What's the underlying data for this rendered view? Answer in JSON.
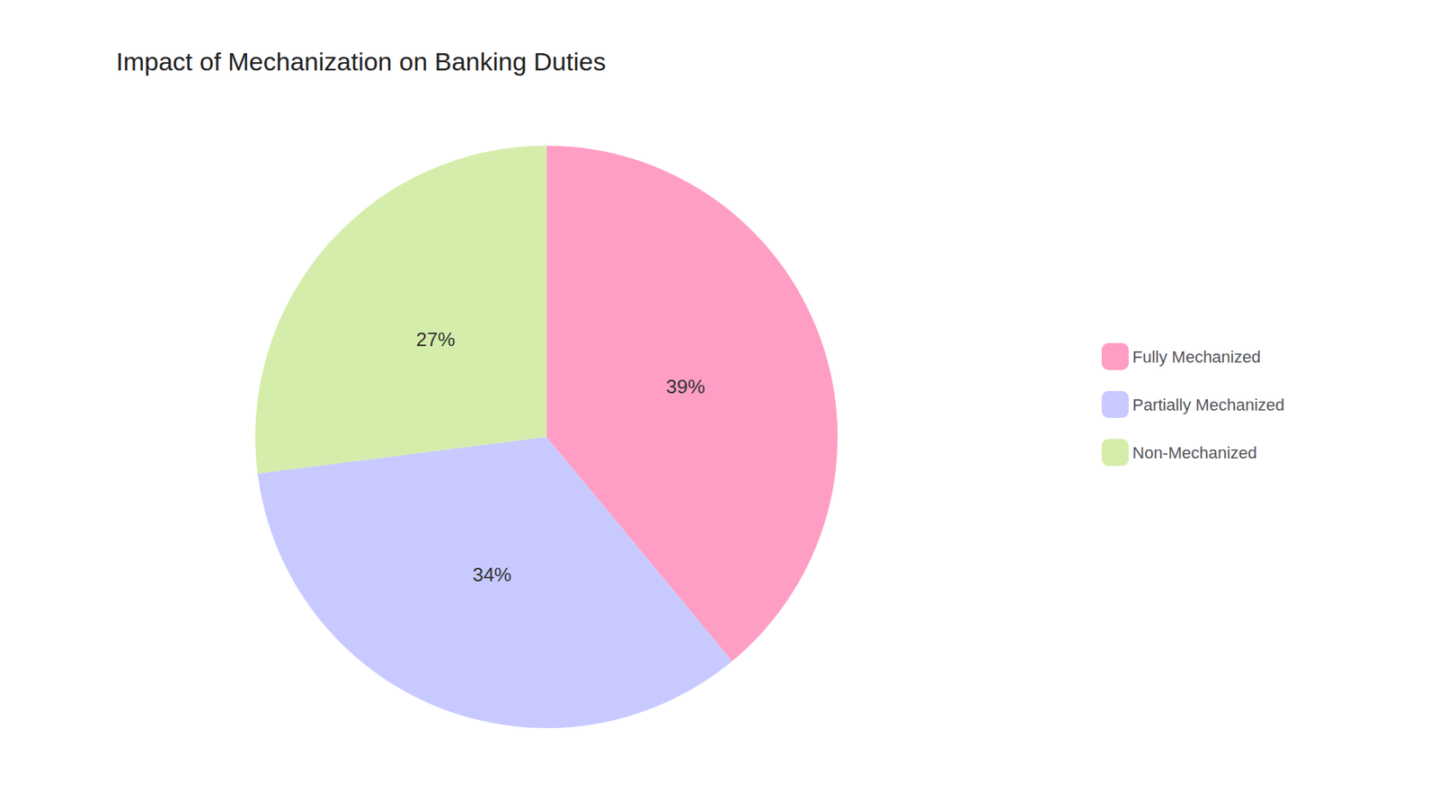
{
  "chart_data": {
    "type": "pie",
    "title": "Impact of Mechanization on Banking Duties",
    "categories": [
      "Fully Mechanized",
      "Partially Mechanized",
      "Non-Mechanized"
    ],
    "values": [
      39,
      34,
      27
    ],
    "value_labels": [
      "39%",
      "34%",
      "27%"
    ],
    "colors": [
      "#FF9EC4",
      "#C8CAFF",
      "#D4EDAA"
    ],
    "data_labels": true,
    "legend": "right"
  }
}
